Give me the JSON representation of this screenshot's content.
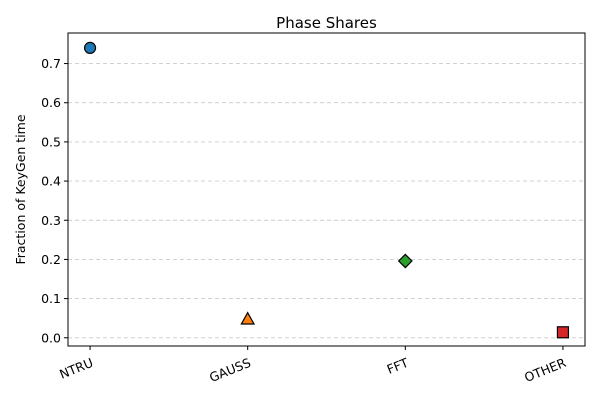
{
  "chart_data": {
    "type": "scatter",
    "title": "Phase Shares",
    "xlabel": "",
    "ylabel": "Fraction of KeyGen time",
    "categories": [
      "NTRU",
      "GAUSS",
      "FFT",
      "OTHER"
    ],
    "values": [
      0.74,
      0.048,
      0.196,
      0.014
    ],
    "markers": [
      "circle",
      "triangle",
      "diamond",
      "square"
    ],
    "colors": [
      "#1f77b4",
      "#ff7f0e",
      "#2ca02c",
      "#d62728"
    ],
    "ylim": [
      -0.021,
      0.778
    ],
    "yticks": [
      0.0,
      0.1,
      0.2,
      0.3,
      0.4,
      0.5,
      0.6,
      0.7
    ],
    "ytick_labels": [
      "0.0",
      "0.1",
      "0.2",
      "0.3",
      "0.4",
      "0.5",
      "0.6",
      "0.7"
    ],
    "grid": "y-dashed",
    "legend": "none"
  }
}
